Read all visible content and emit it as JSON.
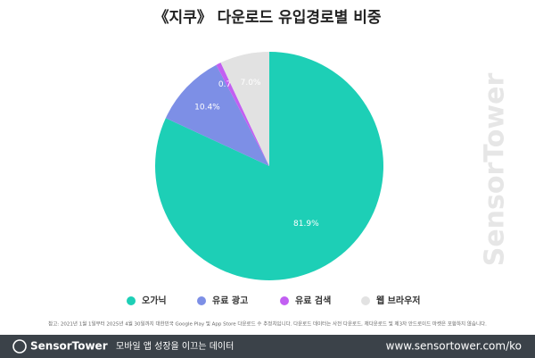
{
  "chart_data": {
    "type": "pie",
    "title": "《지쿠》 다운로드 유입경로별 비중",
    "categories": [
      "오가닉",
      "유료 광고",
      "유료 검색",
      "웹 브라우저"
    ],
    "values": [
      81.9,
      10.4,
      0.7,
      7.0
    ],
    "value_labels": [
      "81.9%",
      "10.4%",
      "0.7%",
      "7.0%"
    ],
    "colors": [
      "#1dcfb6",
      "#7d8fe6",
      "#c25ff2",
      "#e2e2e2"
    ],
    "legend": "bottom",
    "footnote": "참고: 2021년 1월 1일부터 2025년 4월 30일까지 대한민국 Google Play 및 App Store 다운로드 수 추정치입니다. 다운로드 데이터는 사전 다운로드, 재다운로드 및 제3자 안드로이드 마켓은 포함하지 않습니다.",
    "watermark": "SensorTower"
  },
  "footer": {
    "brand": "SensorTower",
    "tagline": "모바일 앱 성장을 이끄는 데이터",
    "url": "www.sensortower.com/ko"
  }
}
